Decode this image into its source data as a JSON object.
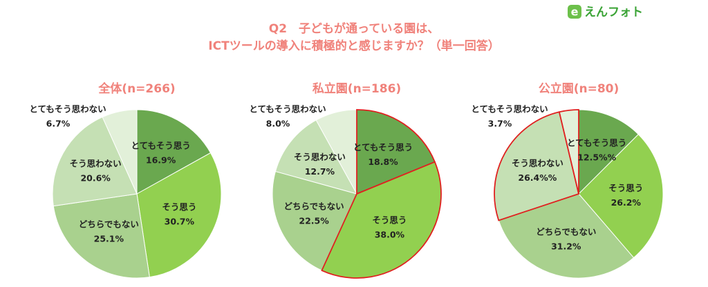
{
  "header": {
    "title": [
      "Q2　子どもが通っている園は、",
      "ICTツールの導入に積極的と感じますか？（単一回答）"
    ],
    "logo_icon": "e",
    "logo": "えんフォト"
  },
  "chart_data": [
    {
      "type": "pie",
      "title": "全体(n=266)",
      "categories": [
        "とてもそう思う",
        "そう思う",
        "どちらでもない",
        "そう思わない",
        "とてもそう思わない"
      ],
      "values": [
        16.9,
        30.7,
        25.1,
        20.6,
        6.7
      ],
      "value_labels": [
        "16.9%",
        "30.7%",
        "25.1%",
        "20.6%",
        "6.7%"
      ],
      "colors": [
        "#6aa84f",
        "#92d050",
        "#a9d18e",
        "#c5e0b4",
        "#e2f0d9"
      ],
      "highlight": []
    },
    {
      "type": "pie",
      "title": "私立園(n=186)",
      "categories": [
        "とてもそう思う",
        "そう思う",
        "どちらでもない",
        "そう思わない",
        "とてもそう思わない"
      ],
      "values": [
        18.8,
        38.0,
        22.5,
        12.7,
        8.0
      ],
      "value_labels": [
        "18.8%",
        "38.0%",
        "22.5%",
        "12.7%",
        "8.0%"
      ],
      "colors": [
        "#6aa84f",
        "#92d050",
        "#a9d18e",
        "#c5e0b4",
        "#e2f0d9"
      ],
      "highlight": [
        0,
        1
      ]
    },
    {
      "type": "pie",
      "title": "公立園(n=80)",
      "categories": [
        "とてもそう思う",
        "そう思う",
        "どちらでもない",
        "そう思わない",
        "とてもそう思わない"
      ],
      "values": [
        12.5,
        26.2,
        31.2,
        26.4,
        3.7
      ],
      "value_labels": [
        "12.5%%",
        "26.2%",
        "31.2%",
        "26.4%%",
        "3.7%"
      ],
      "colors": [
        "#6aa84f",
        "#92d050",
        "#a9d18e",
        "#c5e0b4",
        "#e2f0d9"
      ],
      "highlight": [
        3,
        4
      ]
    }
  ]
}
